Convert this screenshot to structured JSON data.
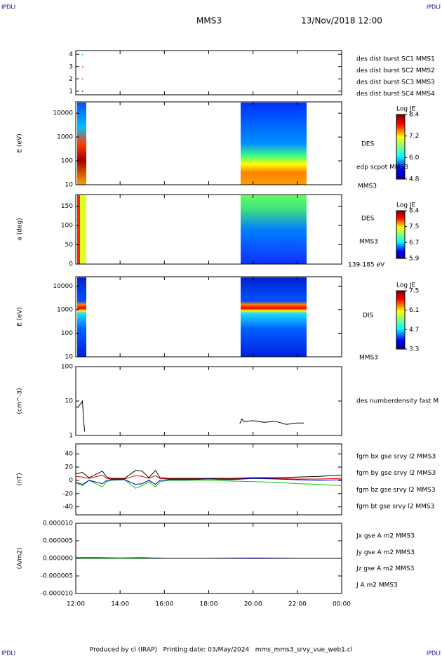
{
  "header": {
    "corner_left": "IPDLI",
    "corner_right": "IPDLI",
    "title": "MMS3",
    "date": "13/Nov/2018 12:00"
  },
  "footer": {
    "text": "Produced by cl (IRAP)   Printing date: 03/May/2024   mms_mms3_srvy_vue_web1.cl",
    "corner_left": "IPDLI",
    "corner_right": "IPDLI"
  },
  "chart_data": [
    {
      "type": "scatter",
      "ylim": [
        0.7,
        4.3
      ],
      "yticks": [
        1,
        2,
        3,
        4
      ],
      "series": [
        {
          "name": "des dist burst SC1 MMS1",
          "color": "#0000cc",
          "x": [
            12.3
          ],
          "values": [
            1
          ]
        },
        {
          "name": "des dist burst SC2 MMS2",
          "color": "#cc00cc",
          "x": [
            12.3
          ],
          "values": [
            2
          ]
        },
        {
          "name": "des dist burst SC3 MMS3",
          "color": "#dd0000",
          "x": [
            12.3
          ],
          "values": [
            3
          ]
        },
        {
          "name": "des dist burst SC4 MMS4",
          "color": "#00cc00",
          "x": [
            12.3
          ],
          "values": [
            4
          ]
        }
      ]
    },
    {
      "type": "spectrogram",
      "ylabel": "E (eV)",
      "log": true,
      "ylim": [
        10,
        30000
      ],
      "yticks": [
        10,
        100,
        1000,
        10000
      ],
      "labels": [
        "DES",
        "edp scpot MMS3",
        "MMS3"
      ],
      "colorbar": {
        "title": "Log JE",
        "ticks": [
          8.4,
          7.2,
          {
            "value": 6,
            "label": "6.0"
          },
          4.8
        ]
      }
    },
    {
      "type": "spectrogram",
      "ylabel": "a (deg)",
      "ylim": [
        0,
        180
      ],
      "yticks": [
        0,
        50,
        100,
        150
      ],
      "labels": [
        "DES",
        "MMS3",
        "139-185 eV"
      ],
      "colorbar": {
        "title": "Log JE",
        "ticks": [
          8.4,
          7.5,
          6.7,
          5.9
        ]
      }
    },
    {
      "type": "spectrogram",
      "ylabel": "E (eV)",
      "log": true,
      "ylim": [
        10,
        25000
      ],
      "yticks": [
        10,
        100,
        1000,
        10000
      ],
      "labels": [
        "DIS",
        "MMS3"
      ],
      "colorbar": {
        "title": "Log JE",
        "ticks": [
          7.5,
          6.1,
          4.7,
          3.3
        ]
      }
    },
    {
      "type": "line",
      "ylabel": "(cm^-3)",
      "log": true,
      "ylim": [
        1,
        100
      ],
      "yticks": [
        1,
        10,
        100
      ],
      "x": [
        12.0,
        12.1,
        12.2,
        12.3,
        12.35,
        12.4,
        16,
        19.4,
        19.5,
        19.6,
        20,
        20.5,
        21,
        21.5,
        22,
        22.3
      ],
      "series": [
        {
          "name": "des numberdensity fast M",
          "color": "#000000",
          "values": [
            7,
            6.5,
            8,
            10,
            3,
            1.3,
            null,
            2.2,
            3,
            2.5,
            2.7,
            2.4,
            2.6,
            2.1,
            2.3,
            2.3
          ]
        }
      ]
    },
    {
      "type": "line",
      "ylabel": "(nT)",
      "ylim": [
        -52,
        55
      ],
      "yticks": [
        -40,
        -20,
        0,
        20,
        40
      ],
      "x": [
        12,
        12.3,
        12.6,
        13.2,
        13.4,
        13.6,
        14.2,
        14.7,
        15.0,
        15.3,
        15.6,
        15.8,
        16.2,
        17,
        18,
        19,
        20,
        21,
        22,
        23,
        24
      ],
      "series": [
        {
          "name": "fgm bx gse srvy l2 MMS3",
          "color": "#dd0000",
          "values": [
            6,
            5,
            3,
            8,
            3,
            2,
            2,
            7,
            6,
            3,
            7,
            3,
            2,
            2,
            2,
            2,
            3,
            3,
            2,
            2,
            3
          ]
        },
        {
          "name": "fgm by gse srvy l2 MMS3",
          "color": "#00cc00",
          "values": [
            -4,
            -8,
            0,
            -10,
            -2,
            0,
            1,
            -12,
            -8,
            -2,
            -10,
            -2,
            0,
            0,
            0,
            -1,
            -2,
            -3,
            -5,
            -6,
            -8
          ]
        },
        {
          "name": "fgm bz gse srvy l2 MMS3",
          "color": "#0000cc",
          "values": [
            -3,
            -6,
            0,
            -5,
            0,
            1,
            1,
            -6,
            -5,
            0,
            -6,
            0,
            1,
            1,
            2,
            1,
            3,
            2,
            1,
            0,
            1
          ]
        },
        {
          "name": "fgm bt gse srvy l2 MMS3",
          "color": "#000000",
          "values": [
            10,
            12,
            4,
            14,
            5,
            3,
            3,
            15,
            14,
            4,
            15,
            4,
            3,
            3,
            3,
            3,
            4,
            4,
            5,
            6,
            8
          ]
        }
      ]
    },
    {
      "type": "line",
      "ylabel": "(A/m2)",
      "ylim": [
        -1e-05,
        1e-05
      ],
      "yticks": [
        {
          "value": -1e-05,
          "label": "-0.000010"
        },
        {
          "value": -5e-06,
          "label": "-0.000005"
        },
        {
          "value": 0,
          "label": "0.000000"
        },
        {
          "value": 5e-06,
          "label": "0.000005"
        },
        {
          "value": 1e-05,
          "label": "0.000010"
        }
      ],
      "xlim": [
        12,
        24
      ],
      "xticks": [
        {
          "value": 12,
          "label": "12:00"
        },
        {
          "value": 14,
          "label": "14:00"
        },
        {
          "value": 16,
          "label": "16:00"
        },
        {
          "value": 18,
          "label": "18:00"
        },
        {
          "value": 20,
          "label": "20:00"
        },
        {
          "value": 22,
          "label": "22:00"
        },
        {
          "value": 24,
          "label": "00:00"
        }
      ],
      "x": [
        12,
        13,
        14,
        15,
        16,
        18,
        20,
        22,
        24
      ],
      "series": [
        {
          "name": "Jx gse A m2 MMS3",
          "color": "#dd0000",
          "values": [
            0,
            0,
            0,
            0,
            0,
            0,
            0,
            0,
            0
          ]
        },
        {
          "name": "Jy gse A m2 MMS3",
          "color": "#00cc00",
          "values": [
            0,
            0,
            0,
            0,
            0,
            0,
            0,
            0,
            0
          ]
        },
        {
          "name": "Jz gse A m2 MMS3",
          "color": "#0000cc",
          "values": [
            2e-07,
            2e-07,
            1e-07,
            2e-07,
            0,
            0,
            0,
            0,
            0
          ]
        },
        {
          "name": "J A m2 MMS3",
          "color": "#000000",
          "values": [
            1e-07,
            1e-07,
            1e-07,
            1e-07,
            0,
            0,
            1e-07,
            0,
            0
          ]
        }
      ]
    }
  ]
}
